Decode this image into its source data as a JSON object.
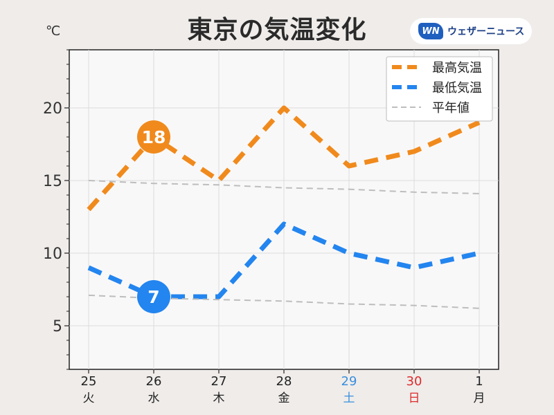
{
  "header": {
    "title": "東京の気温変化",
    "unit": "℃",
    "brand_logo": "WN",
    "brand_name": "ウェザーニュース"
  },
  "colors": {
    "high": "#f08a1c",
    "low": "#2385ef",
    "normal": "#bdbdbd",
    "saturday": "#3a8fdc",
    "sunday": "#dd2b2b",
    "weekday": "#222222"
  },
  "chart_data": {
    "type": "line",
    "title": "東京の気温変化",
    "ylabel": "℃",
    "xlabel": "",
    "categories": [
      "25",
      "26",
      "27",
      "28",
      "29",
      "30",
      "1"
    ],
    "weekdays": [
      "火",
      "水",
      "木",
      "金",
      "土",
      "日",
      "月"
    ],
    "day_types": [
      "weekday",
      "weekday",
      "weekday",
      "weekday",
      "saturday",
      "sunday",
      "weekday"
    ],
    "ylim": [
      2,
      24
    ],
    "yticks": [
      5,
      10,
      15,
      20
    ],
    "grid": true,
    "legend_position": "top-right",
    "series": [
      {
        "name": "最高気温",
        "color": "#f08a1c",
        "style": "dashed-thick",
        "values": [
          13,
          18,
          15,
          20,
          16,
          17,
          19
        ]
      },
      {
        "name": "最低気温",
        "color": "#2385ef",
        "style": "dashed-thick",
        "values": [
          9,
          7,
          7,
          12,
          10,
          9,
          10
        ]
      },
      {
        "name": "平年値",
        "color": "#bdbdbd",
        "style": "dashed-thin",
        "values": [
          15.0,
          14.8,
          14.7,
          14.5,
          14.4,
          14.2,
          14.1
        ]
      },
      {
        "name": "平年値",
        "color": "#bdbdbd",
        "style": "dashed-thin",
        "legend": false,
        "values": [
          7.1,
          6.9,
          6.8,
          6.7,
          6.5,
          6.4,
          6.2
        ]
      }
    ],
    "annotations": [
      {
        "series": "最高気温",
        "index": 1,
        "label": "18"
      },
      {
        "series": "最低気温",
        "index": 1,
        "label": "7"
      }
    ]
  }
}
